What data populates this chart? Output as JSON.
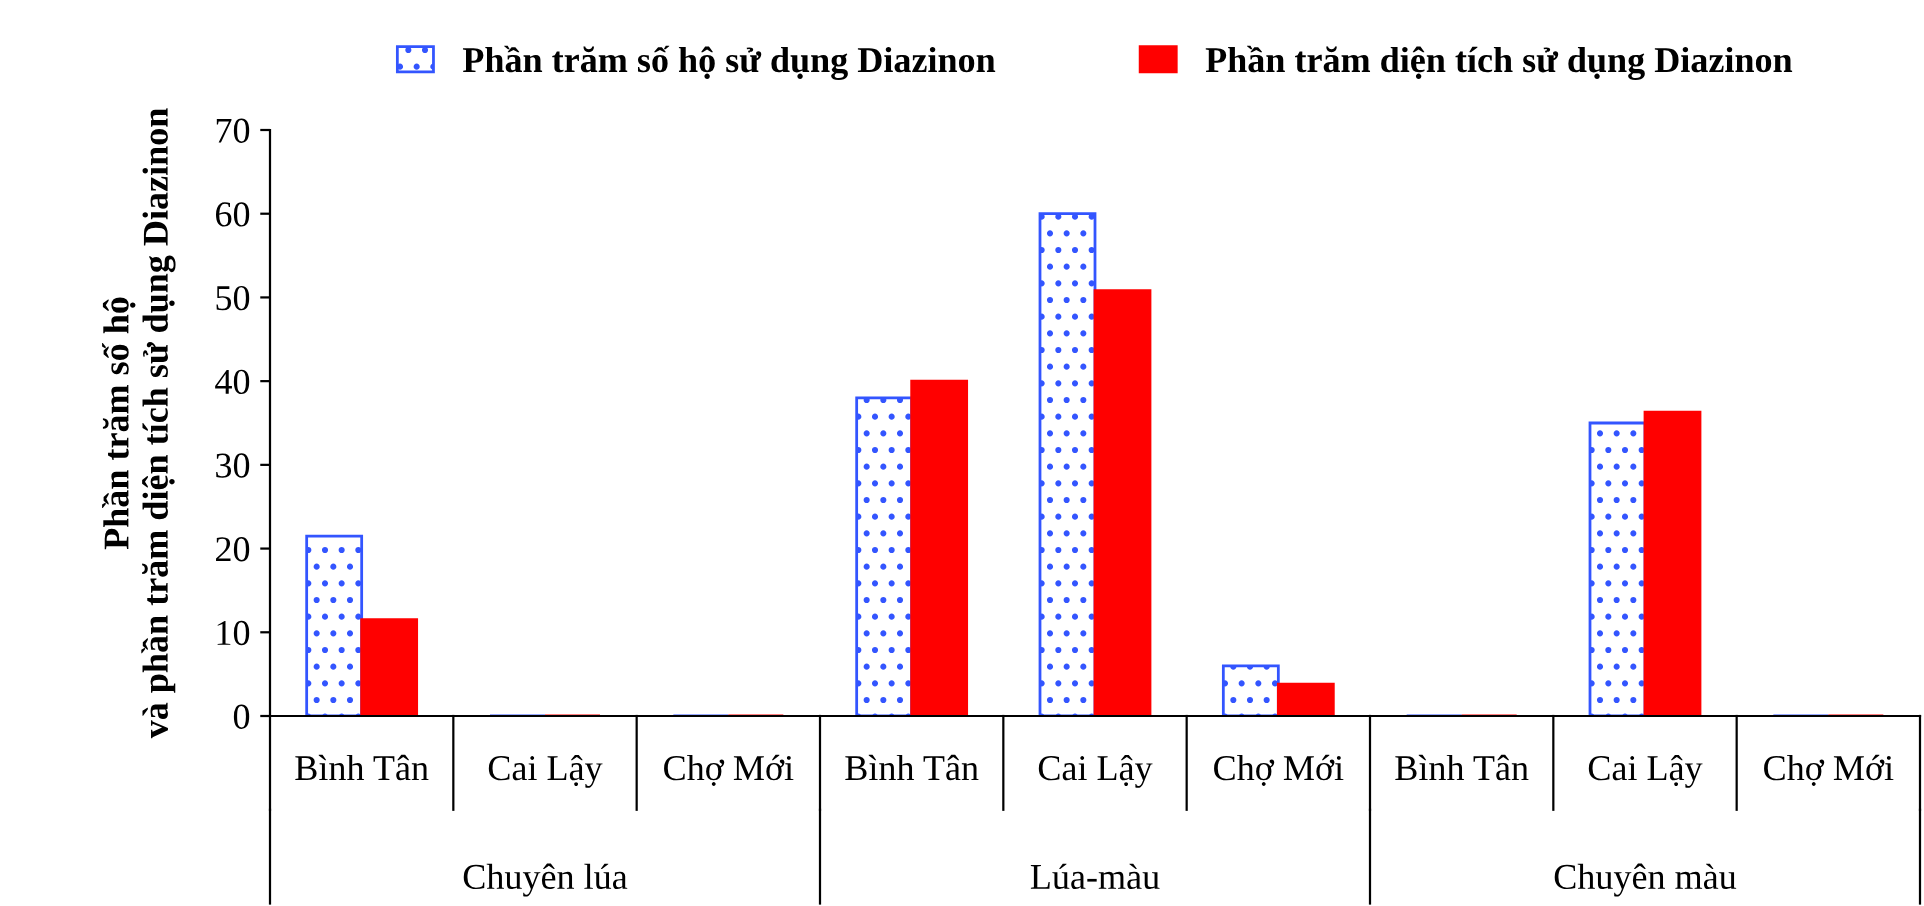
{
  "chart_data": {
    "type": "bar",
    "ylabel": "Phần trăm số hộ\nvà phần trăm diện tích sử dụng Diazinon",
    "categories": [
      "Bình Tân",
      "Cai Lậy",
      "Chợ Mới",
      "Bình Tân",
      "Cai Lậy",
      "Chợ Mới",
      "Bình Tân",
      "Cai Lậy",
      "Chợ Mới"
    ],
    "annotations": [
      "Chuyên lúa",
      "Lúa-màu",
      "Chuyên màu"
    ],
    "series": [
      {
        "name": "Phần trăm số hộ sử dụng Diazinon",
        "color": "#3355ff",
        "values": [
          21.5,
          0,
          0,
          38,
          60,
          6,
          0,
          35,
          0
        ]
      },
      {
        "name": "Phần trăm diện tích sử dụng Diazinon",
        "color": "#ff0000",
        "values": [
          11.5,
          0,
          0,
          40,
          50.8,
          3.8,
          0,
          36.3,
          0
        ]
      }
    ],
    "ylim": [
      0,
      70
    ],
    "yticks": [
      0,
      10,
      20,
      30,
      40,
      50,
      60,
      70
    ],
    "grid": false,
    "legend": "top"
  }
}
